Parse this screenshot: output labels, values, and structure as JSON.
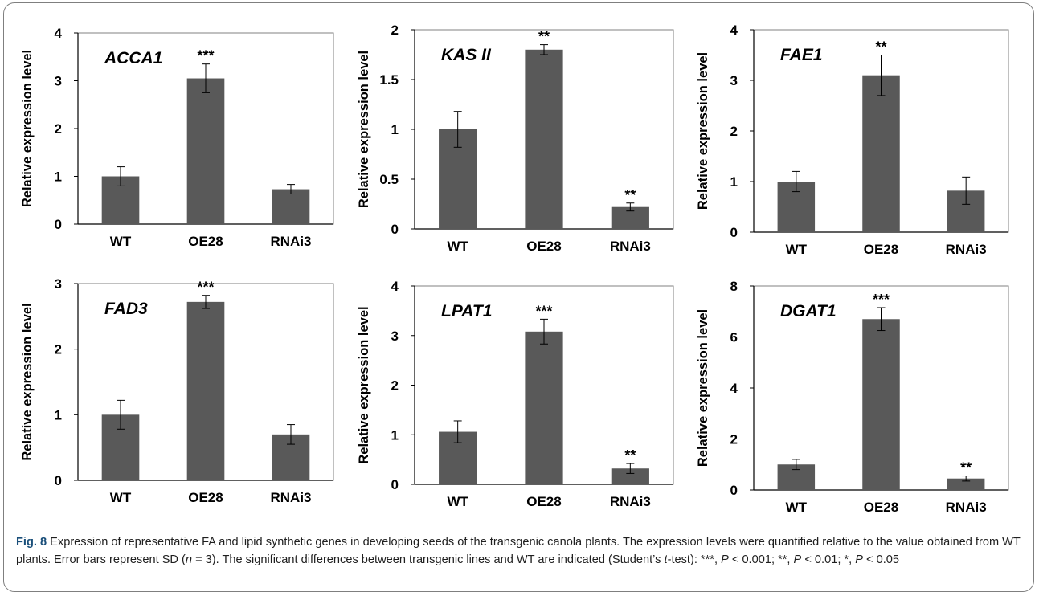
{
  "colors": {
    "bar": "#595959",
    "axis": "#000000",
    "plot_border": "#808080",
    "figure_label": "#1a4f7a"
  },
  "chart_data": [
    {
      "type": "bar",
      "title": "ACCA1",
      "categories": [
        "WT",
        "OE28",
        "RNAi3"
      ],
      "values": [
        1.0,
        3.05,
        0.73
      ],
      "errors": [
        0.2,
        0.3,
        0.1
      ],
      "significance": [
        "",
        "***",
        ""
      ],
      "ylabel": "Relative expression level",
      "ylim": [
        0,
        4
      ],
      "yticks": [
        0,
        1,
        2,
        3,
        4
      ],
      "ytick_labels": [
        "0",
        "1",
        "2",
        "3",
        "4"
      ],
      "grid": false,
      "legend": "none"
    },
    {
      "type": "bar",
      "title": "KAS II",
      "categories": [
        "WT",
        "OE28",
        "RNAi3"
      ],
      "values": [
        1.0,
        1.8,
        0.22
      ],
      "errors": [
        0.18,
        0.05,
        0.04
      ],
      "significance": [
        "",
        "**",
        "**"
      ],
      "ylabel": "Relative expression level",
      "ylim": [
        0,
        2
      ],
      "yticks": [
        0,
        0.5,
        1,
        1.5,
        2
      ],
      "ytick_labels": [
        "0",
        "0.5",
        "1",
        "1.5",
        "2"
      ],
      "grid": false,
      "legend": "none"
    },
    {
      "type": "bar",
      "title": "FAE1",
      "categories": [
        "WT",
        "OE28",
        "RNAi3"
      ],
      "values": [
        1.0,
        3.1,
        0.82
      ],
      "errors": [
        0.2,
        0.4,
        0.27
      ],
      "significance": [
        "",
        "**",
        ""
      ],
      "ylabel": "Relative expression level",
      "ylim": [
        0,
        4
      ],
      "yticks": [
        0,
        1,
        2,
        3,
        4
      ],
      "ytick_labels": [
        "0",
        "1",
        "2",
        "3",
        "4"
      ],
      "grid": false,
      "legend": "none"
    },
    {
      "type": "bar",
      "title": "FAD3",
      "categories": [
        "WT",
        "OE28",
        "RNAi3"
      ],
      "values": [
        1.0,
        2.72,
        0.7
      ],
      "errors": [
        0.22,
        0.1,
        0.15
      ],
      "significance": [
        "",
        "***",
        ""
      ],
      "ylabel": "Relative expression level",
      "ylim": [
        0,
        3
      ],
      "yticks": [
        0,
        1,
        2,
        3
      ],
      "ytick_labels": [
        "0",
        "1",
        "2",
        "3"
      ],
      "grid": false,
      "legend": "none"
    },
    {
      "type": "bar",
      "title": "LPAT1",
      "categories": [
        "WT",
        "OE28",
        "RNAi3"
      ],
      "values": [
        1.06,
        3.08,
        0.32
      ],
      "errors": [
        0.22,
        0.25,
        0.1
      ],
      "significance": [
        "",
        "***",
        "**"
      ],
      "ylabel": "Relative expression level",
      "ylim": [
        0,
        4
      ],
      "yticks": [
        0,
        1,
        2,
        3,
        4
      ],
      "ytick_labels": [
        "0",
        "1",
        "2",
        "3",
        "4"
      ],
      "grid": false,
      "legend": "none"
    },
    {
      "type": "bar",
      "title": "DGAT1",
      "categories": [
        "WT",
        "OE28",
        "RNAi3"
      ],
      "values": [
        1.0,
        6.7,
        0.45
      ],
      "errors": [
        0.2,
        0.45,
        0.1
      ],
      "significance": [
        "",
        "***",
        "**"
      ],
      "ylabel": "Relative expression level",
      "ylim": [
        0,
        8
      ],
      "yticks": [
        0,
        2,
        4,
        6,
        8
      ],
      "ytick_labels": [
        "0",
        "2",
        "4",
        "6",
        "8"
      ],
      "grid": false,
      "legend": "none"
    }
  ],
  "caption": {
    "figure_label": "Fig. 8",
    "line1": "Expression of representative FA and lipid synthetic genes in developing seeds of the transgenic canola plants. The expression levels were",
    "line2_a": "quantified relative to the value obtained from WT plants. Error bars represent SD (",
    "line2_n": "n",
    "line2_b": " = 3). The significant differences between transgenic lines and",
    "line3_a": "WT are indicated (Student’s ",
    "line3_t": "t",
    "line3_b": "-test): ***, ",
    "p1": "P",
    "line3_c": " < 0.001; **, ",
    "p2": "P",
    "line3_d": " < 0.01; *, ",
    "p3": "P",
    "line3_e": " < 0.05"
  }
}
